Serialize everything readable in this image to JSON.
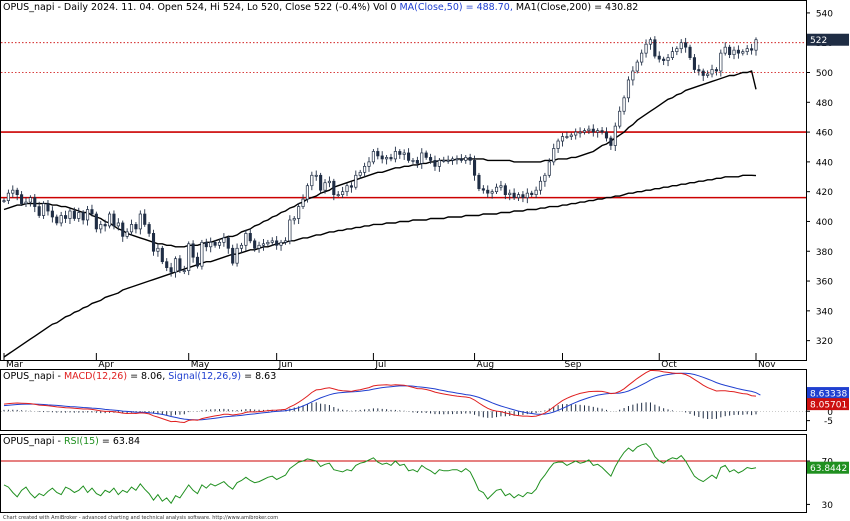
{
  "header": {
    "main": "OPUS_napi - Daily 2024. 11. 04. Open 524, Hi 524, Lo 520, Close 522 (-0.4%) Vol 0",
    "ma50": "MA(Close,50) = 488.70,",
    "ma200": "MA1(Close,200) = 430.82",
    "macd_prefix": "OPUS_napi -",
    "macd_label": "MACD(12,26)",
    "macd_value": "= 8.06,",
    "signal_label": "Signal(12,26,9)",
    "signal_value": "= 8.63",
    "rsi_prefix": "OPUS_napi -",
    "rsi_label": "RSI(15)",
    "rsi_value": "= 63.84"
  },
  "footer": "Chart created with AmiBroker - advanced charting and technical analysis software. http://www.amibroker.com",
  "colors": {
    "up_body": "#ffffff",
    "down_body": "#1f2d44",
    "candle_outline": "#1f2d44",
    "ma": "#000000",
    "resistance": "#cc0000",
    "dotted": "#cc0000",
    "macd": "#e02020",
    "signal": "#2040d0",
    "rsi": "#209020",
    "price_badge": "#1f2d44",
    "macd_badge": "#2040d0",
    "signal_badge": "#cc1010",
    "rsi_badge": "#209020"
  },
  "chart_data": [
    {
      "type": "candlestick",
      "title": "OPUS_napi - Daily",
      "x_labels": [
        "Mar",
        "Apr",
        "May",
        "Jun",
        "Jul",
        "Aug",
        "Sep",
        "Oct",
        "Nov"
      ],
      "x_label_index": [
        0,
        21,
        42,
        62,
        84,
        107,
        127,
        149,
        171
      ],
      "ylim": [
        307,
        548
      ],
      "yticks": [
        320,
        340,
        360,
        380,
        400,
        420,
        440,
        460,
        480,
        500,
        520,
        540
      ],
      "last_price_label": "522",
      "horizontal_lines": [
        {
          "value": 416,
          "style": "solid"
        },
        {
          "value": 460,
          "style": "solid"
        },
        {
          "value": 500,
          "style": "dotted"
        },
        {
          "value": 520,
          "style": "dotted"
        }
      ],
      "close": [
        414,
        419,
        421,
        418,
        412,
        413,
        416,
        410,
        404,
        412,
        407,
        403,
        399,
        404,
        402,
        407,
        402,
        406,
        401,
        408,
        405,
        395,
        398,
        397,
        405,
        397,
        399,
        390,
        393,
        398,
        395,
        405,
        398,
        392,
        380,
        382,
        373,
        369,
        366,
        375,
        367,
        367,
        385,
        376,
        370,
        386,
        383,
        386,
        384,
        386,
        389,
        382,
        372,
        382,
        384,
        392,
        387,
        382,
        384,
        385,
        386,
        387,
        384,
        386,
        387,
        401,
        402,
        410,
        415,
        424,
        431,
        431,
        421,
        426,
        427,
        418,
        418,
        420,
        424,
        423,
        431,
        433,
        437,
        440,
        447,
        444,
        442,
        443,
        442,
        447,
        445,
        446,
        441,
        441,
        439,
        446,
        443,
        441,
        437,
        441,
        441,
        441,
        442,
        442,
        441,
        443,
        441,
        431,
        422,
        421,
        419,
        420,
        423,
        424,
        418,
        419,
        416,
        418,
        416,
        419,
        418,
        421,
        427,
        431,
        440,
        449,
        454,
        457,
        457,
        458,
        460,
        460,
        461,
        462,
        460,
        461,
        460,
        456,
        451,
        464,
        474,
        483,
        495,
        501,
        507,
        513,
        519,
        522,
        511,
        509,
        508,
        510,
        514,
        516,
        520,
        517,
        510,
        502,
        501,
        498,
        499,
        502,
        501,
        513,
        517,
        512,
        515,
        513,
        514,
        516,
        515,
        522
      ]
    },
    {
      "type": "line",
      "series": [
        {
          "name": "MA(Close,50)",
          "values": [
            408,
            409,
            410,
            411,
            411,
            412,
            412,
            412,
            412,
            412,
            412,
            411,
            411,
            410,
            410,
            409,
            408,
            407,
            406,
            406,
            404,
            403,
            402,
            400,
            399,
            397,
            395,
            394,
            392,
            391,
            390,
            389,
            388,
            387,
            386,
            385,
            385,
            384,
            384,
            383,
            383,
            383,
            384,
            384,
            384,
            385,
            386,
            386,
            387,
            388,
            389,
            390,
            390,
            391,
            393,
            394,
            395,
            397,
            398,
            400,
            401,
            403,
            404,
            406,
            407,
            409,
            410,
            412,
            413,
            415,
            416,
            417,
            419,
            420,
            421,
            423,
            424,
            425,
            426,
            427,
            428,
            429,
            430,
            431,
            432,
            433,
            433,
            434,
            435,
            436,
            436,
            437,
            437,
            438,
            438,
            439,
            439,
            440,
            440,
            441,
            441,
            441,
            441,
            442,
            442,
            442,
            442,
            442,
            442,
            442,
            441,
            441,
            441,
            441,
            441,
            441,
            440,
            440,
            440,
            440,
            440,
            440,
            440,
            441,
            441,
            441,
            442,
            442,
            442,
            443,
            443,
            444,
            445,
            446,
            447,
            449,
            451,
            452,
            454,
            456,
            458,
            460,
            463,
            465,
            468,
            470,
            472,
            474,
            476,
            478,
            480,
            482,
            483,
            485,
            486,
            488,
            489,
            490,
            491,
            492,
            493,
            494,
            495,
            496,
            497,
            498,
            498,
            499,
            500,
            500,
            501,
            488.7
          ]
        },
        {
          "name": "MA1(Close,200)",
          "values": [
            309,
            311,
            313,
            315,
            317,
            319,
            321,
            323,
            325,
            327,
            329,
            331,
            332,
            334,
            336,
            337,
            339,
            340,
            342,
            343,
            345,
            346,
            347,
            349,
            350,
            351,
            352,
            354,
            355,
            356,
            357,
            358,
            359,
            360,
            361,
            362,
            363,
            364,
            365,
            366,
            367,
            368,
            369,
            370,
            371,
            372,
            373,
            373,
            374,
            375,
            376,
            377,
            378,
            378,
            379,
            380,
            381,
            381,
            382,
            383,
            383,
            384,
            385,
            385,
            386,
            387,
            387,
            388,
            389,
            389,
            390,
            391,
            391,
            392,
            393,
            393,
            394,
            394,
            395,
            395,
            396,
            396,
            397,
            397,
            398,
            398,
            398,
            399,
            399,
            399,
            400,
            400,
            400,
            401,
            401,
            401,
            401,
            402,
            402,
            402,
            402,
            403,
            403,
            403,
            403,
            404,
            404,
            404,
            404,
            405,
            405,
            405,
            405,
            406,
            406,
            406,
            407,
            407,
            407,
            408,
            408,
            408,
            409,
            409,
            410,
            410,
            410,
            411,
            411,
            412,
            412,
            413,
            413,
            414,
            414,
            415,
            415,
            416,
            416,
            417,
            417,
            418,
            419,
            419,
            420,
            420,
            421,
            421,
            422,
            422,
            423,
            423,
            424,
            424,
            425,
            425,
            426,
            426,
            427,
            427,
            428,
            428,
            429,
            429,
            430,
            430,
            430,
            430,
            431,
            431,
            431,
            430.82
          ]
        }
      ]
    },
    {
      "type": "line",
      "title": "MACD(12,26)",
      "yticks": [
        10,
        5,
        0,
        -5
      ],
      "ylim": [
        -10,
        22
      ],
      "series": [
        {
          "name": "MACD(12,26)",
          "values": [
            3.8,
            4.1,
            4.3,
            4.4,
            4.3,
            4.2,
            4.1,
            3.7,
            3.3,
            3.1,
            2.9,
            2.7,
            2.3,
            2.1,
            1.9,
            1.8,
            1.6,
            1.4,
            1.2,
            1.2,
            1.0,
            0.6,
            0.2,
            -0.1,
            -0.1,
            -0.3,
            -0.5,
            -1.0,
            -1.2,
            -1.1,
            -1.2,
            -0.9,
            -1.0,
            -1.4,
            -2.4,
            -3.1,
            -3.9,
            -4.7,
            -5.5,
            -5.4,
            -5.8,
            -6.0,
            -4.9,
            -4.6,
            -4.8,
            -3.9,
            -3.4,
            -2.9,
            -2.5,
            -2.1,
            -1.6,
            -1.6,
            -2.0,
            -1.7,
            -1.3,
            -0.6,
            -0.3,
            -0.4,
            -0.2,
            0.0,
            0.3,
            0.5,
            0.6,
            0.8,
            1.0,
            2.3,
            3.4,
            4.8,
            6.3,
            8.1,
            10.0,
            11.4,
            11.6,
            12.2,
            12.5,
            11.9,
            11.3,
            10.9,
            10.8,
            10.6,
            11.1,
            11.5,
            12.1,
            12.6,
            13.5,
            13.9,
            14.0,
            14.1,
            13.9,
            14.1,
            14.0,
            13.9,
            13.3,
            12.7,
            12.1,
            12.0,
            11.6,
            11.0,
            10.2,
            9.7,
            9.2,
            8.8,
            8.4,
            8.1,
            7.8,
            7.6,
            7.2,
            6.0,
            4.4,
            2.9,
            1.6,
            0.6,
            0.1,
            -0.2,
            -0.9,
            -1.4,
            -2.0,
            -2.3,
            -2.6,
            -2.6,
            -2.8,
            -2.6,
            -1.9,
            -1.0,
            0.5,
            2.3,
            4.1,
            5.7,
            6.9,
            7.9,
            8.8,
            9.5,
            10.0,
            10.5,
            10.6,
            10.7,
            10.6,
            10.1,
            9.4,
            9.7,
            10.6,
            12.0,
            13.9,
            15.7,
            17.5,
            19.1,
            20.6,
            21.8,
            21.7,
            21.5,
            21.0,
            20.7,
            20.4,
            20.2,
            20.2,
            19.6,
            18.5,
            17.0,
            15.5,
            13.9,
            12.6,
            11.7,
            10.8,
            10.9,
            10.9,
            10.6,
            10.4,
            9.9,
            9.4,
            9.2,
            8.3,
            8.06
          ]
        },
        {
          "name": "Signal(12,26,9)",
          "values": [
            3.0,
            3.2,
            3.4,
            3.6,
            3.7,
            3.8,
            3.8,
            3.8,
            3.7,
            3.6,
            3.4,
            3.3,
            3.1,
            2.9,
            2.7,
            2.5,
            2.4,
            2.2,
            2.0,
            1.9,
            1.7,
            1.5,
            1.3,
            1.0,
            0.8,
            0.6,
            0.4,
            0.1,
            -0.1,
            -0.3,
            -0.5,
            -0.5,
            -0.6,
            -0.8,
            -1.0,
            -1.3,
            -1.7,
            -2.2,
            -2.8,
            -3.3,
            -3.8,
            -4.2,
            -4.4,
            -4.5,
            -4.6,
            -4.5,
            -4.3,
            -4.0,
            -3.7,
            -3.4,
            -3.0,
            -2.8,
            -2.6,
            -2.4,
            -2.2,
            -1.9,
            -1.6,
            -1.4,
            -1.1,
            -0.8,
            -0.6,
            -0.3,
            -0.1,
            0.1,
            0.3,
            0.7,
            1.2,
            1.9,
            2.8,
            3.8,
            5.0,
            6.1,
            7.1,
            8.0,
            8.8,
            9.4,
            9.8,
            10.0,
            10.2,
            10.3,
            10.5,
            10.7,
            11.0,
            11.3,
            11.8,
            12.2,
            12.6,
            12.9,
            13.1,
            13.3,
            13.5,
            13.6,
            13.5,
            13.4,
            13.1,
            12.9,
            12.6,
            12.3,
            11.9,
            11.4,
            11.0,
            10.5,
            10.1,
            9.7,
            9.3,
            8.9,
            8.6,
            8.1,
            7.4,
            6.5,
            5.5,
            4.5,
            3.6,
            2.8,
            2.1,
            1.4,
            0.7,
            0.1,
            -0.4,
            -0.9,
            -1.2,
            -1.5,
            -1.6,
            -1.5,
            -1.1,
            -0.4,
            0.5,
            1.5,
            2.6,
            3.7,
            4.7,
            5.7,
            6.5,
            7.3,
            8.0,
            8.6,
            9.0,
            9.3,
            9.5,
            9.6,
            9.7,
            10.1,
            10.8,
            11.8,
            12.9,
            14.1,
            15.3,
            16.6,
            17.8,
            18.6,
            19.2,
            19.6,
            19.9,
            20.2,
            20.3,
            20.3,
            20.1,
            19.6,
            18.9,
            18.1,
            17.2,
            16.3,
            15.3,
            14.5,
            13.8,
            13.2,
            12.6,
            12.0,
            11.5,
            11.0,
            10.6,
            9.9,
            8.63
          ]
        }
      ],
      "value_labels": [
        "8.63338",
        "8.05701"
      ]
    },
    {
      "type": "line",
      "title": "RSI(15)",
      "yticks": [
        70,
        30
      ],
      "ylim": [
        23,
        94
      ],
      "reference_line": 70,
      "series": [
        {
          "name": "RSI(15)",
          "values": [
            48,
            46,
            41,
            37,
            43,
            46,
            40,
            36,
            40,
            38,
            42,
            45,
            41,
            39,
            46,
            44,
            41,
            43,
            47,
            41,
            45,
            40,
            38,
            43,
            41,
            45,
            39,
            43,
            41,
            46,
            43,
            49,
            44,
            40,
            34,
            39,
            33,
            36,
            31,
            38,
            36,
            42,
            48,
            43,
            40,
            48,
            45,
            49,
            47,
            49,
            51,
            47,
            44,
            50,
            52,
            55,
            52,
            50,
            51,
            53,
            55,
            56,
            53,
            55,
            57,
            63,
            66,
            69,
            70,
            72,
            71,
            70,
            65,
            67,
            68,
            62,
            61,
            60,
            62,
            61,
            66,
            68,
            69,
            71,
            73,
            69,
            67,
            68,
            66,
            70,
            66,
            67,
            61,
            62,
            60,
            66,
            63,
            61,
            58,
            62,
            61,
            61,
            62,
            62,
            60,
            63,
            60,
            52,
            43,
            41,
            35,
            39,
            43,
            44,
            38,
            40,
            36,
            39,
            37,
            41,
            40,
            44,
            52,
            57,
            63,
            68,
            69,
            69,
            66,
            68,
            70,
            68,
            69,
            71,
            66,
            67,
            64,
            60,
            56,
            65,
            72,
            78,
            82,
            79,
            83,
            85,
            86,
            82,
            74,
            70,
            68,
            71,
            73,
            72,
            75,
            70,
            63,
            56,
            53,
            51,
            54,
            57,
            54,
            64,
            66,
            60,
            62,
            59,
            61,
            64,
            63,
            63.84
          ]
        }
      ],
      "value_label": "63.8442"
    }
  ]
}
